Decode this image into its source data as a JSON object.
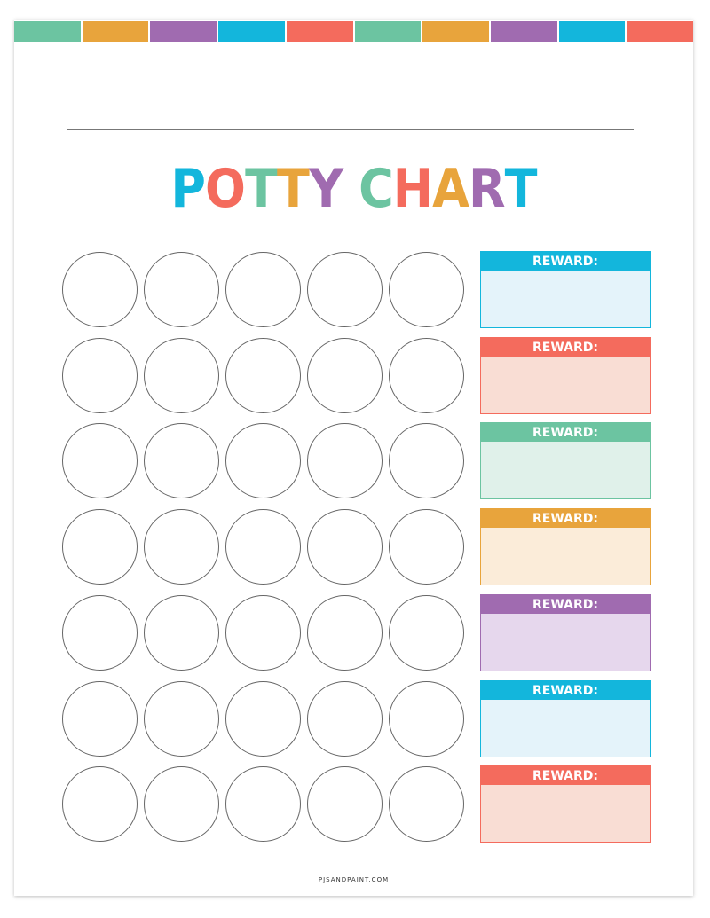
{
  "colors": {
    "green": "#6cc4a1",
    "orange": "#e8a43c",
    "purple": "#a06bb0",
    "blue": "#13b6dc",
    "coral": "#f46b5d"
  },
  "stripes": [
    "#6cc4a1",
    "#e8a43c",
    "#a06bb0",
    "#13b6dc",
    "#f46b5d",
    "#6cc4a1",
    "#e8a43c",
    "#a06bb0",
    "#13b6dc",
    "#f46b5d"
  ],
  "title": {
    "text": "POTTY CHART",
    "letter_colors": [
      "#13b6dc",
      "#f46b5d",
      "#6cc4a1",
      "#e8a43c",
      "#a06bb0",
      "",
      "#6cc4a1",
      "#f46b5d",
      "#e8a43c",
      "#a06bb0",
      "#13b6dc"
    ]
  },
  "grid": {
    "rows": 7,
    "columns": 5
  },
  "rewards": [
    {
      "label": "REWARD:",
      "color": "#13b6dc",
      "fill": "#e4f3fa"
    },
    {
      "label": "REWARD:",
      "color": "#f46b5d",
      "fill": "#f9ddd4"
    },
    {
      "label": "REWARD:",
      "color": "#6cc4a1",
      "fill": "#e0f1ea"
    },
    {
      "label": "REWARD:",
      "color": "#e8a43c",
      "fill": "#fbecd9"
    },
    {
      "label": "REWARD:",
      "color": "#a06bb0",
      "fill": "#e6d7ed"
    },
    {
      "label": "REWARD:",
      "color": "#13b6dc",
      "fill": "#e4f3fa"
    },
    {
      "label": "REWARD:",
      "color": "#f46b5d",
      "fill": "#f9ddd4"
    }
  ],
  "footer": "PJSANDPAINT.COM"
}
